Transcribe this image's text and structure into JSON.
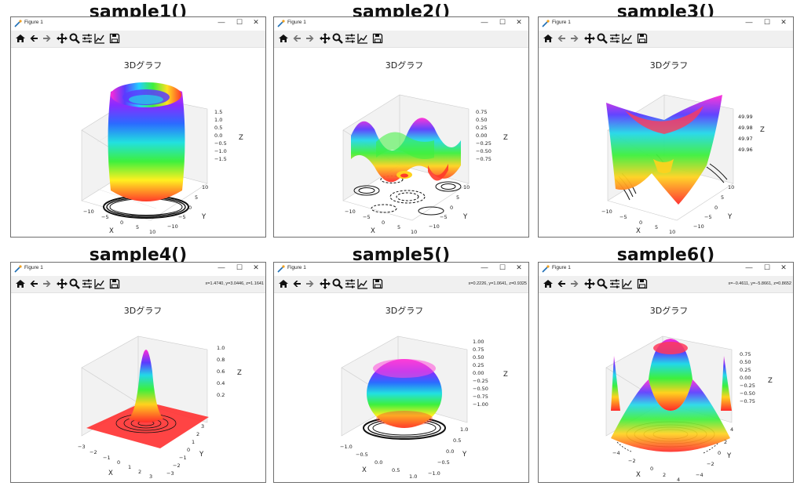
{
  "headings": [
    "sample1()",
    "sample2()",
    "sample3()",
    "sample4()",
    "sample5()",
    "sample6()"
  ],
  "window": {
    "title": "Figure 1",
    "controls": {
      "minimize": "—",
      "maximize": "☐",
      "close": "✕"
    }
  },
  "toolbar_icons": [
    "home-icon",
    "back-arrow-icon",
    "forward-arrow-icon",
    "pan-icon",
    "zoom-icon",
    "configure-subplots-icon",
    "edit-axis-icon",
    "save-icon"
  ],
  "figures": [
    {
      "title": "3Dグラフ",
      "coords": "",
      "xticks": [
        "−10",
        "−5",
        "0",
        "5",
        "10"
      ],
      "yticks": [
        "10",
        "5",
        "0",
        "−5",
        "−10"
      ],
      "zticks": [
        "1.5",
        "1.0",
        "0.5",
        "0.0",
        "−0.5",
        "−1.0",
        "−1.5"
      ],
      "xlabel": "X",
      "ylabel": "Y",
      "zlabel": "Z"
    },
    {
      "title": "3Dグラフ",
      "coords": "",
      "xticks": [
        "−10",
        "−5",
        "0",
        "5",
        "10"
      ],
      "yticks": [
        "10",
        "5",
        "0",
        "−5",
        "−10"
      ],
      "zticks": [
        "0.75",
        "0.50",
        "0.25",
        "0.00",
        "−0.25",
        "−0.50",
        "−0.75"
      ],
      "xlabel": "X",
      "ylabel": "Y",
      "zlabel": "Z"
    },
    {
      "title": "3Dグラフ",
      "coords": "",
      "xticks": [
        "−10",
        "−5",
        "0",
        "5",
        "10"
      ],
      "yticks": [
        "10",
        "5",
        "0",
        "−5",
        "−10"
      ],
      "zticks": [
        "49.99",
        "49.98",
        "49.97",
        "49.96"
      ],
      "xlabel": "X",
      "ylabel": "Y",
      "zlabel": "Z"
    },
    {
      "title": "3Dグラフ",
      "coords": "x=1.4740, y=3.0446, z=1.1641",
      "xticks": [
        "−3",
        "−2",
        "−1",
        "0",
        "1",
        "2",
        "3"
      ],
      "yticks": [
        "3",
        "2",
        "1",
        "0",
        "−1",
        "−2",
        "−3"
      ],
      "zticks": [
        "1.0",
        "0.8",
        "0.6",
        "0.4",
        "0.2"
      ],
      "xlabel": "X",
      "ylabel": "Y",
      "zlabel": "Z"
    },
    {
      "title": "3Dグラフ",
      "coords": "x=0.2226, y=1.0641, z=0.9325",
      "xticks": [
        "−1.0",
        "−0.5",
        "0.0",
        "0.5",
        "1.0"
      ],
      "yticks": [
        "1.0",
        "0.5",
        "0.0",
        "−0.5",
        "−1.0"
      ],
      "zticks": [
        "1.00",
        "0.75",
        "0.50",
        "0.25",
        "0.00",
        "−0.25",
        "−0.50",
        "−0.75",
        "−1.00"
      ],
      "xlabel": "X",
      "ylabel": "Y",
      "zlabel": "Z"
    },
    {
      "title": "3Dグラフ",
      "coords": "x=−0.4611, y=−5.8661, z=0.8652",
      "xticks": [
        "−4",
        "−2",
        "0",
        "2",
        "4"
      ],
      "yticks": [
        "4",
        "2",
        "0",
        "−2",
        "−4"
      ],
      "zticks": [
        "0.75",
        "0.50",
        "0.25",
        "0.00",
        "−0.25",
        "−0.50",
        "−0.75"
      ],
      "xlabel": "X",
      "ylabel": "Y",
      "zlabel": "Z"
    }
  ]
}
